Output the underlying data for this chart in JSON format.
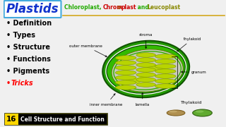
{
  "title_plastids": "Plastids",
  "bullet_items": [
    "Definition",
    "Types",
    "Structure",
    "Functions",
    "Pigments"
  ],
  "bullet_trick": "Tricks",
  "bg_color": "#f0f0f0",
  "title_box_color": "#ffffff",
  "title_box_border": "#44aadd",
  "title_text_color": "#1133cc",
  "subtitle_line_color": "#d4a820",
  "number_bg": "#ffd700",
  "number_text": "16",
  "bottom_label": "Cell Structure and Function",
  "chloro_outer_dark": "#1a7a00",
  "chloro_outer_light": "#33cc00",
  "chloro_white_ring": "#ffffff",
  "chloro_stroma": "#c8d8b0",
  "thylakoid_fill": "#b8d400",
  "thylakoid_edge": "#7a9200",
  "stroma_label": "stroma",
  "outer_membrane_label": "outer membrane",
  "inner_membrane_label": "inner membrane",
  "thylakoid_label_top": "thylakoid",
  "lamella_label": "lamella",
  "granum_label": "granum",
  "thylakoid_label2": "Thylakoid",
  "disc_brown_color": "#b09050",
  "disc_green_color": "#60b030"
}
